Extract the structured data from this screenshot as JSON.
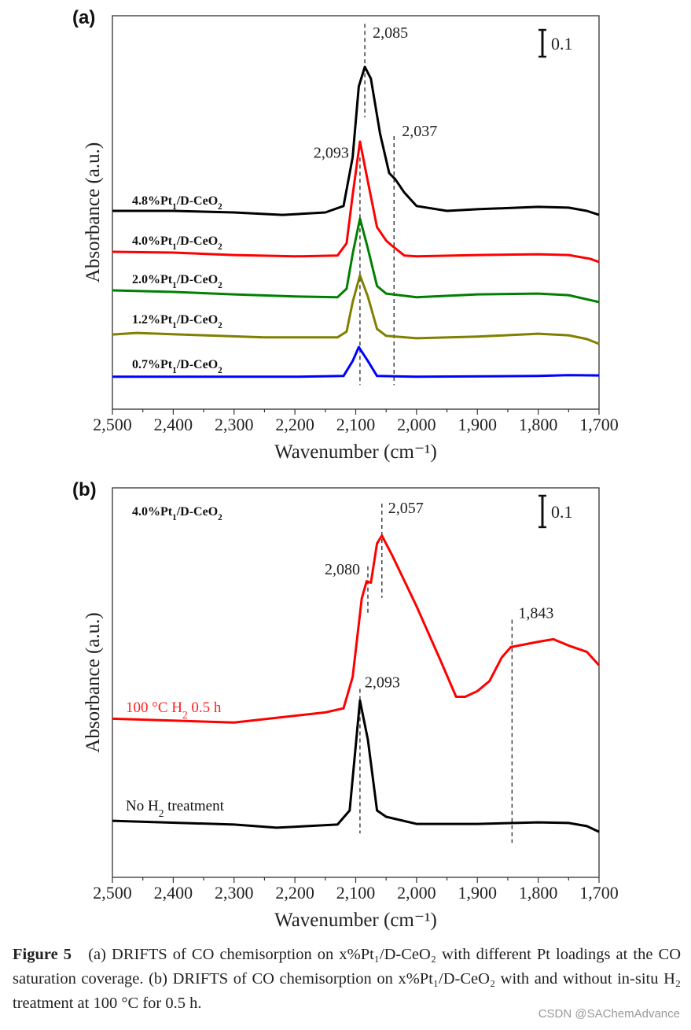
{
  "chart_data": [
    {
      "type": "line",
      "panel_label": "(a)",
      "xlabel": "Wavenumber (cm⁻¹)",
      "ylabel": "Absorbance (a.u.)",
      "xlim": [
        2500,
        1700
      ],
      "x_reversed": true,
      "xticks": [
        "2,500",
        "2,400",
        "2,300",
        "2,200",
        "2,100",
        "2,000",
        "1,900",
        "1,800",
        "1,700"
      ],
      "ylim": [
        0,
        1.47
      ],
      "grid": false,
      "scale_bar": "0.1",
      "annotations": [
        {
          "text": "2,085",
          "x": 2085,
          "y_from": 1.44,
          "y_to": 1.09
        },
        {
          "text": "2,093",
          "x": 2093,
          "y_from": 0.94,
          "y_to": 0.09
        },
        {
          "text": "2,037",
          "x": 2037,
          "y_from": 1.02,
          "y_to": 0.09
        }
      ],
      "series": [
        {
          "name": "4.8%Pt1/D-CeO2",
          "color": "#000000",
          "x": [
            2500,
            2400,
            2300,
            2220,
            2150,
            2120,
            2105,
            2095,
            2085,
            2075,
            2060,
            2045,
            2035,
            2020,
            2000,
            1950,
            1900,
            1800,
            1750,
            1720,
            1700
          ],
          "y": [
            0.741,
            0.741,
            0.735,
            0.726,
            0.735,
            0.759,
            0.941,
            1.206,
            1.279,
            1.235,
            1.029,
            0.882,
            0.859,
            0.809,
            0.759,
            0.741,
            0.747,
            0.756,
            0.753,
            0.741,
            0.726
          ]
        },
        {
          "name": "4.0%Pt1/D-CeO2",
          "color": "#ff0000",
          "x": [
            2500,
            2400,
            2300,
            2200,
            2130,
            2115,
            2105,
            2093,
            2080,
            2065,
            2050,
            2040,
            2020,
            2000,
            1900,
            1800,
            1750,
            1715,
            1700
          ],
          "y": [
            0.588,
            0.585,
            0.576,
            0.571,
            0.574,
            0.62,
            0.8,
            1.0,
            0.85,
            0.68,
            0.63,
            0.61,
            0.574,
            0.571,
            0.576,
            0.579,
            0.576,
            0.562,
            0.55
          ]
        },
        {
          "name": "2.0%Pt1/D-CeO2",
          "color": "#008000",
          "x": [
            2500,
            2400,
            2300,
            2200,
            2130,
            2115,
            2105,
            2093,
            2080,
            2065,
            2050,
            2000,
            1900,
            1800,
            1750,
            1700
          ],
          "y": [
            0.444,
            0.438,
            0.429,
            0.421,
            0.418,
            0.45,
            0.58,
            0.712,
            0.6,
            0.46,
            0.432,
            0.418,
            0.429,
            0.432,
            0.426,
            0.4
          ]
        },
        {
          "name": "1.2%Pt1/D-CeO2",
          "color": "#808000",
          "x": [
            2500,
            2460,
            2350,
            2250,
            2130,
            2115,
            2105,
            2093,
            2080,
            2065,
            2050,
            2000,
            1900,
            1800,
            1750,
            1720,
            1700
          ],
          "y": [
            0.279,
            0.285,
            0.276,
            0.268,
            0.268,
            0.29,
            0.4,
            0.5,
            0.42,
            0.3,
            0.274,
            0.265,
            0.271,
            0.282,
            0.276,
            0.262,
            0.244
          ]
        },
        {
          "name": "0.7%Pt1/D-CeO2",
          "color": "#0000ff",
          "x": [
            2500,
            2200,
            2120,
            2105,
            2095,
            2080,
            2065,
            2000,
            1800,
            1750,
            1700
          ],
          "y": [
            0.121,
            0.121,
            0.124,
            0.18,
            0.232,
            0.18,
            0.124,
            0.121,
            0.124,
            0.127,
            0.126
          ]
        }
      ]
    },
    {
      "type": "line",
      "panel_label": "(b)",
      "title": "4.0%Pt1/D-CeO2",
      "xlabel": "Wavenumber (cm⁻¹)",
      "ylabel": "Absorbance (a.u.)",
      "xlim": [
        2500,
        1700
      ],
      "x_reversed": true,
      "xticks": [
        "2,500",
        "2,400",
        "2,300",
        "2,200",
        "2,100",
        "2,000",
        "1,900",
        "1,800",
        "1,700"
      ],
      "ylim": [
        0,
        1.24
      ],
      "grid": false,
      "scale_bar": "0.1",
      "annotations": [
        {
          "text": "2,057",
          "x": 2057,
          "y_from": 1.19,
          "y_to": 0.89
        },
        {
          "text": "2,080",
          "x": 2080,
          "y_from": 0.99,
          "y_to": 0.84
        },
        {
          "text": "1,843",
          "x": 1843,
          "y_from": 0.82,
          "y_to": 0.11
        },
        {
          "text": "2,093",
          "x": 2093,
          "y_from": 0.6,
          "y_to": 0.14
        }
      ],
      "series": [
        {
          "name": "100 °C H2 0.5 h",
          "color": "#ff0000",
          "x": [
            2500,
            2300,
            2150,
            2120,
            2105,
            2090,
            2082,
            2075,
            2065,
            2057,
            2040,
            2000,
            1960,
            1935,
            1920,
            1900,
            1880,
            1860,
            1845,
            1800,
            1775,
            1750,
            1720,
            1700
          ],
          "y": [
            0.505,
            0.493,
            0.525,
            0.538,
            0.638,
            0.888,
            0.943,
            0.938,
            1.063,
            1.088,
            1.025,
            0.863,
            0.688,
            0.575,
            0.575,
            0.593,
            0.625,
            0.7,
            0.733,
            0.75,
            0.758,
            0.738,
            0.718,
            0.675
          ]
        },
        {
          "name": "No H2 treatment",
          "color": "#000000",
          "x": [
            2500,
            2300,
            2230,
            2130,
            2110,
            2093,
            2080,
            2065,
            2050,
            2000,
            1900,
            1800,
            1750,
            1720,
            1700
          ],
          "y": [
            0.18,
            0.168,
            0.158,
            0.168,
            0.213,
            0.563,
            0.438,
            0.213,
            0.193,
            0.17,
            0.17,
            0.175,
            0.173,
            0.163,
            0.145
          ]
        }
      ]
    }
  ],
  "caption": {
    "label": "Figure 5",
    "line1": "(a) DRIFTS of CO chemisorption on x%Pt₁/D-CeO₂ with different Pt",
    "line2": "loadings at the CO saturation coverage. (b) DRIFTS of CO chemisorption on",
    "line3": "x%Pt₁/D-CeO₂ with and without in-situ H₂ treatment at 100 °C for 0.5 h."
  },
  "watermark": "CSDN @SAChemAdvance"
}
